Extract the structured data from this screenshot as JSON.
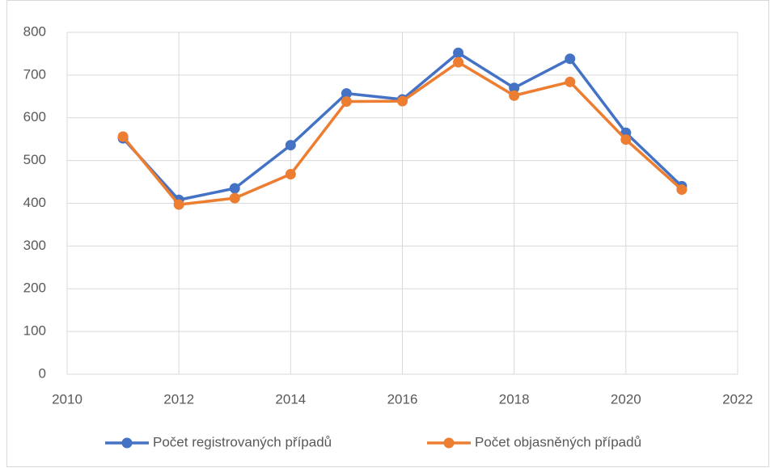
{
  "chart_data": {
    "type": "line",
    "x": [
      2011,
      2012,
      2013,
      2014,
      2015,
      2016,
      2017,
      2018,
      2019,
      2020,
      2021
    ],
    "series": [
      {
        "name": "Počet registrovaných případů",
        "color": "#4472c4",
        "values": [
          552,
          408,
          435,
          536,
          657,
          643,
          752,
          670,
          738,
          565,
          440
        ]
      },
      {
        "name": "Počet objasněných případů",
        "color": "#ed7d31",
        "values": [
          556,
          397,
          412,
          468,
          638,
          639,
          730,
          652,
          684,
          549,
          432
        ]
      }
    ],
    "xlim": [
      2010,
      2022
    ],
    "xticks": [
      2010,
      2012,
      2014,
      2016,
      2018,
      2020,
      2022
    ],
    "ylim": [
      0,
      800
    ],
    "yticks": [
      0,
      100,
      200,
      300,
      400,
      500,
      600,
      700,
      800
    ],
    "grid": true,
    "legend": "bottom"
  }
}
